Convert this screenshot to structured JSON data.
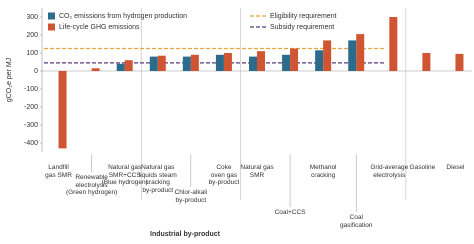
{
  "chart_data": {
    "type": "bar",
    "y_label": "gCO₂e per MJ",
    "group_label": "Industrial by-product",
    "categories": [
      "Landfill\ngas SMR",
      "Renewable\nelectrolysis\n(Green hydrogen)",
      "Natural gas\nSMR+CCS\n(Blue hydrogen)",
      "Natural gas\nliquids steam\ncracking\nby-product",
      "Chlor-alkali\nby-product",
      "Coke\noven gas\nby-product",
      "Natural gas\nSMR",
      "Coal+CCS",
      "Methanol\ncracking",
      "Coal\ngasification",
      "Grid-average\nelectrolysis",
      "Gasoline",
      "Diesel"
    ],
    "series": [
      {
        "name": "CO₂ emissions from hydrogen production",
        "color": "#2b6b8c",
        "values": [
          null,
          null,
          40,
          80,
          80,
          90,
          80,
          90,
          115,
          170,
          null,
          null,
          null
        ]
      },
      {
        "name": "Life-cycle GHG emissions",
        "color": "#cf5533",
        "values": [
          -430,
          15,
          60,
          85,
          90,
          100,
          110,
          125,
          170,
          205,
          300,
          100,
          95
        ]
      }
    ],
    "reference_lines": [
      {
        "name": "Eligibility requirement",
        "color": "#e8a33c",
        "value": 125
      },
      {
        "name": "Subsidy requirement",
        "color": "#5b3a77",
        "value": 45
      }
    ],
    "ylim": [
      -450,
      350
    ],
    "yticks": [
      -400,
      -300,
      -200,
      -100,
      0,
      100,
      200,
      300
    ],
    "grid": false
  }
}
